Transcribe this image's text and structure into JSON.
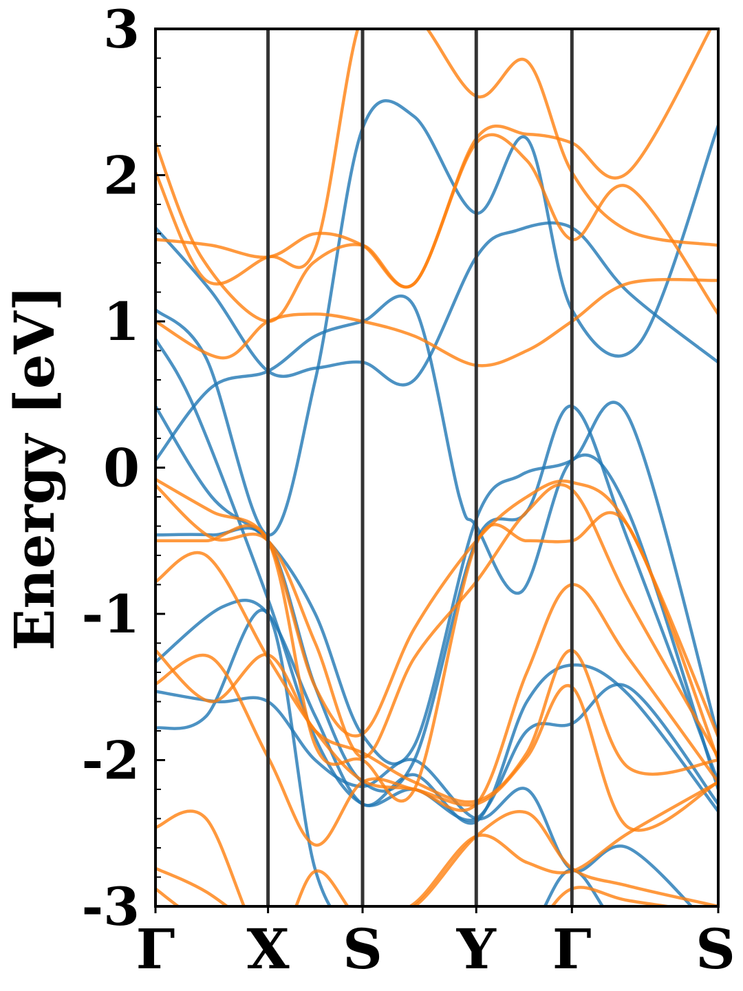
{
  "chart_data": {
    "type": "line",
    "title": "",
    "xlabel": "",
    "ylabel": "Energy [eV]",
    "ylim": [
      -3,
      3
    ],
    "xlim": [
      0,
      5
    ],
    "yticks": [
      {
        "value": 3,
        "label": "3"
      },
      {
        "value": 2,
        "label": "2"
      },
      {
        "value": 1,
        "label": "1"
      },
      {
        "value": 0,
        "label": "0"
      },
      {
        "value": -1,
        "label": "-1"
      },
      {
        "value": -2,
        "label": "-2"
      },
      {
        "value": -3,
        "label": "-3"
      }
    ],
    "kpoints": [
      {
        "label": "Γ",
        "x": 0.0
      },
      {
        "label": "X",
        "x": 1.0
      },
      {
        "label": "S",
        "x": 1.84
      },
      {
        "label": "Y",
        "x": 2.85
      },
      {
        "label": "Γ",
        "x": 3.7
      },
      {
        "label": "S",
        "x": 5.0
      }
    ],
    "grid": false,
    "legend": "none",
    "colors": {
      "spin_up": "#1f77b4",
      "spin_down": "#ff7f0e",
      "kline": "#333333",
      "axis": "#000000"
    },
    "series": [
      {
        "spin": "up",
        "x": [
          0,
          0.5,
          1.0,
          1.42,
          1.84,
          2.3,
          2.85,
          3.2,
          3.7,
          4.2,
          5.0
        ],
        "values": [
          1.64,
          1.2,
          0.66,
          0.68,
          0.72,
          0.6,
          1.44,
          1.62,
          1.64,
          1.2,
          0.72
        ]
      },
      {
        "spin": "up",
        "x": [
          0,
          0.45,
          1.0,
          1.42,
          1.84,
          2.3,
          2.85,
          3.3,
          3.7,
          4.3,
          5.0
        ],
        "values": [
          1.08,
          0.75,
          -0.46,
          0.6,
          2.32,
          2.4,
          1.74,
          2.25,
          1.08,
          0.85,
          2.34
        ]
      },
      {
        "spin": "up",
        "x": [
          0,
          0.35,
          1.0,
          1.42,
          1.84,
          2.3,
          2.85,
          3.3,
          3.7,
          4.2,
          5.0
        ],
        "values": [
          0.88,
          0.4,
          -0.9,
          -1.85,
          -2.3,
          -2.2,
          -2.4,
          -1.8,
          -1.75,
          -1.5,
          -2.3
        ]
      },
      {
        "spin": "up",
        "x": [
          0,
          0.5,
          1.0,
          1.42,
          1.84,
          2.3,
          2.85,
          3.25,
          3.7,
          4.2,
          5.0
        ],
        "values": [
          0.42,
          -0.2,
          -0.5,
          -1.0,
          -1.83,
          -1.9,
          -0.35,
          -0.05,
          0.05,
          0.35,
          -1.84
        ]
      },
      {
        "spin": "up",
        "x": [
          0,
          0.5,
          1.0,
          1.42,
          1.84,
          2.3,
          2.7,
          2.85,
          3.25,
          3.7,
          4.2,
          5.0
        ],
        "values": [
          0.05,
          0.55,
          0.66,
          0.9,
          1.0,
          1.1,
          -0.2,
          -0.4,
          -0.85,
          0.05,
          -0.3,
          -2.2
        ]
      },
      {
        "spin": "up",
        "x": [
          0,
          0.5,
          1.0,
          1.42,
          1.84,
          2.3,
          2.85,
          3.3,
          3.7,
          4.2,
          5.0
        ],
        "values": [
          -0.46,
          -0.46,
          -0.5,
          -1.5,
          -2.15,
          -2.0,
          -0.5,
          -0.3,
          0.42,
          -0.5,
          -2.15
        ]
      },
      {
        "spin": "up",
        "x": [
          0,
          0.6,
          1.0,
          1.42,
          1.84,
          2.3,
          2.85,
          3.3,
          3.7,
          4.2,
          5.0
        ],
        "values": [
          -1.33,
          -0.95,
          -1.0,
          -1.7,
          -2.3,
          -2.1,
          -2.42,
          -1.6,
          -1.35,
          -1.55,
          -2.35
        ]
      },
      {
        "spin": "up",
        "x": [
          0,
          0.55,
          1.0,
          1.42,
          1.84,
          2.3,
          2.85,
          3.3,
          3.7,
          4.2,
          5.0
        ],
        "values": [
          -1.53,
          -1.6,
          -1.6,
          -2.0,
          -2.18,
          -2.0,
          -2.4,
          -2.2,
          -2.75,
          -2.6,
          -3.2
        ]
      },
      {
        "spin": "up",
        "x": [
          0,
          0.45,
          1.0,
          1.42,
          1.84,
          2.3,
          2.85,
          3.3,
          3.7,
          4.2,
          5.0
        ],
        "values": [
          -1.78,
          -1.7,
          -1.0,
          -2.75,
          -3.2,
          -3.3,
          -3.3,
          -3.2,
          -2.75,
          -3.2,
          -3.3
        ]
      },
      {
        "spin": "down",
        "x": [
          0,
          0.4,
          1.0,
          1.4,
          1.84,
          2.3,
          2.85,
          3.3,
          3.7,
          4.2,
          5.0
        ],
        "values": [
          2.22,
          1.45,
          1.0,
          1.4,
          1.52,
          1.26,
          2.25,
          2.28,
          2.22,
          2.02,
          3.1
        ]
      },
      {
        "spin": "down",
        "x": [
          0,
          0.45,
          1.0,
          1.42,
          1.84,
          2.3,
          2.85,
          3.3,
          3.7,
          4.2,
          5.0
        ],
        "values": [
          2.02,
          1.28,
          1.44,
          1.5,
          3.1,
          3.1,
          2.54,
          2.78,
          2.02,
          1.62,
          1.52
        ]
      },
      {
        "spin": "down",
        "x": [
          0,
          0.5,
          1.0,
          1.42,
          1.84,
          2.3,
          2.85,
          3.3,
          3.7,
          4.2,
          5.0
        ],
        "values": [
          1.56,
          1.52,
          1.44,
          1.6,
          1.52,
          1.26,
          2.22,
          2.1,
          1.56,
          1.92,
          1.05
        ]
      },
      {
        "spin": "down",
        "x": [
          0,
          0.6,
          1.0,
          1.42,
          1.84,
          2.3,
          2.85,
          3.3,
          3.7,
          4.2,
          5.0
        ],
        "values": [
          1.0,
          0.75,
          1.0,
          1.05,
          1.0,
          0.9,
          0.7,
          0.8,
          1.0,
          1.26,
          1.28
        ]
      },
      {
        "spin": "down",
        "x": [
          0,
          0.5,
          1.0,
          1.42,
          1.84,
          2.3,
          2.85,
          3.3,
          3.7,
          4.2,
          5.0
        ],
        "values": [
          -0.08,
          -0.3,
          -0.5,
          -1.5,
          -1.82,
          -1.1,
          -0.5,
          -0.2,
          -0.1,
          -0.4,
          -1.84
        ]
      },
      {
        "spin": "down",
        "x": [
          0,
          0.5,
          1.0,
          1.42,
          1.84,
          2.3,
          2.85,
          3.3,
          3.7,
          4.2,
          5.0
        ],
        "values": [
          -0.12,
          -0.48,
          -0.5,
          -1.2,
          -1.98,
          -1.3,
          -0.78,
          -0.3,
          -0.15,
          -0.9,
          -1.98
        ]
      },
      {
        "spin": "down",
        "x": [
          0,
          0.45,
          1.0,
          1.42,
          1.84,
          2.3,
          2.85,
          3.3,
          3.7,
          4.2,
          5.0
        ],
        "values": [
          -0.5,
          -0.5,
          -0.5,
          -1.9,
          -2.0,
          -2.2,
          -0.52,
          -0.5,
          -0.5,
          -0.4,
          -2.0
        ]
      },
      {
        "spin": "down",
        "x": [
          0,
          0.45,
          1.0,
          1.42,
          1.84,
          2.3,
          2.85,
          3.3,
          3.7,
          4.2,
          5.0
        ],
        "values": [
          -0.78,
          -0.6,
          -1.3,
          -1.8,
          -2.14,
          -2.2,
          -2.3,
          -1.4,
          -0.8,
          -1.3,
          -2.15
        ]
      },
      {
        "spin": "down",
        "x": [
          0,
          0.5,
          1.0,
          1.42,
          1.84,
          2.3,
          2.85,
          3.3,
          3.7,
          4.2,
          5.0
        ],
        "values": [
          -1.25,
          -1.6,
          -1.28,
          -1.8,
          -1.95,
          -2.15,
          -2.28,
          -1.95,
          -1.25,
          -2.05,
          -2.0
        ]
      },
      {
        "spin": "down",
        "x": [
          0,
          0.5,
          1.0,
          1.42,
          1.84,
          2.3,
          2.85,
          3.3,
          3.7,
          4.2,
          5.0
        ],
        "values": [
          -1.48,
          -1.3,
          -1.98,
          -2.58,
          -2.15,
          -2.2,
          -2.3,
          -1.98,
          -1.5,
          -2.46,
          -2.15
        ]
      },
      {
        "spin": "down",
        "x": [
          0,
          0.45,
          1.0,
          1.42,
          1.84,
          2.3,
          2.85,
          3.3,
          3.7,
          4.2,
          5.0
        ],
        "values": [
          -2.46,
          -2.4,
          -3.3,
          -2.76,
          -3.1,
          -2.98,
          -2.52,
          -2.7,
          -2.76,
          -2.5,
          -2.15
        ]
      },
      {
        "spin": "down",
        "x": [
          0,
          0.45,
          1.0,
          1.42,
          1.84,
          2.3,
          2.85,
          3.3,
          3.7,
          4.2,
          5.0
        ],
        "values": [
          -2.74,
          -2.9,
          -3.2,
          -3.3,
          -3.05,
          -3.0,
          -2.52,
          -2.36,
          -2.74,
          -2.86,
          -3.0
        ]
      },
      {
        "spin": "down",
        "x": [
          0,
          0.4,
          1.0,
          1.4,
          1.84,
          2.3,
          2.85,
          3.3,
          3.7,
          4.2,
          5.0
        ],
        "values": [
          -2.88,
          -3.1,
          -3.3,
          -3.3,
          -3.3,
          -3.3,
          -3.3,
          -3.2,
          -2.88,
          -2.96,
          -3.05
        ]
      }
    ]
  }
}
